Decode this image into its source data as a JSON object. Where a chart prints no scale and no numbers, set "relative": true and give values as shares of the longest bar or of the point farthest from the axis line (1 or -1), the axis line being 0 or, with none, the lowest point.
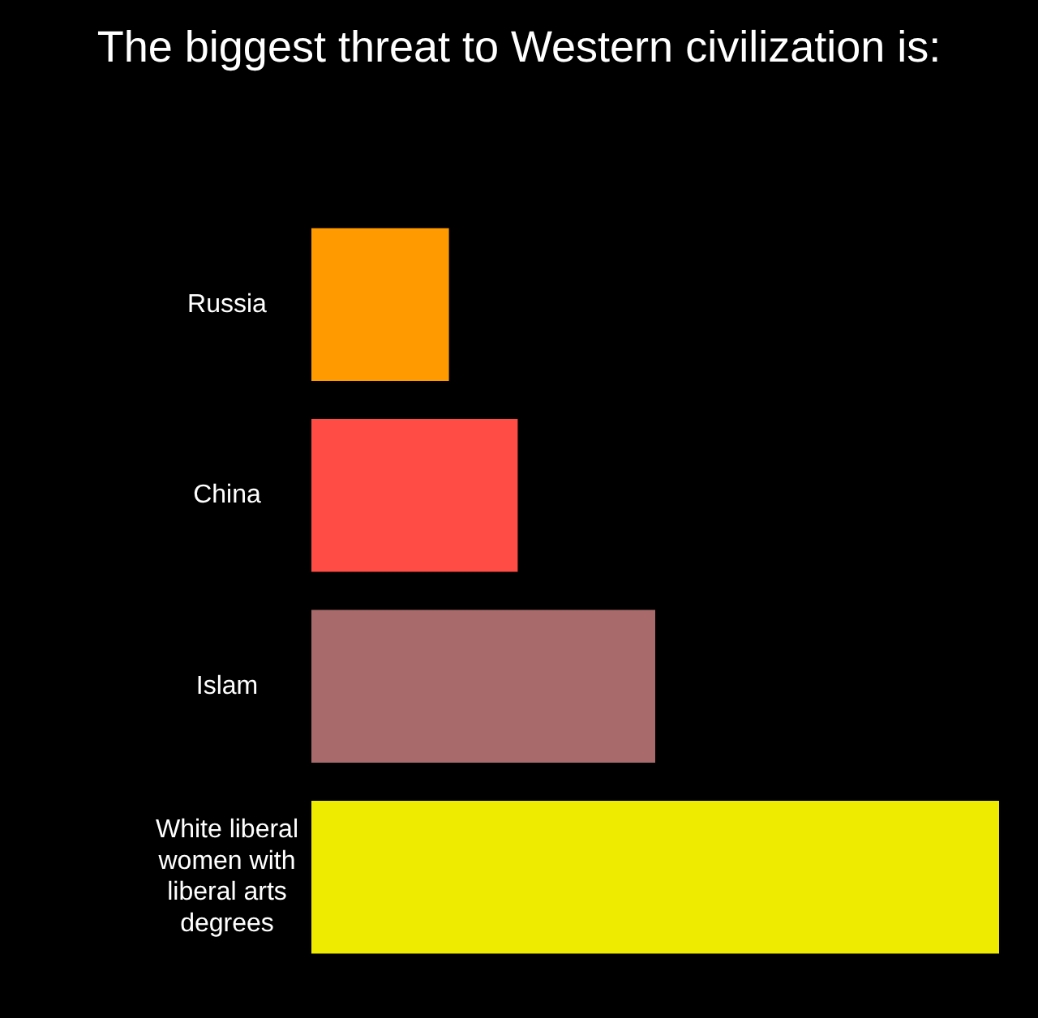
{
  "chart_data": {
    "type": "bar",
    "orientation": "horizontal",
    "relative": true,
    "title": "The biggest threat to Western civilization is:",
    "categories": [
      "Russia",
      "China",
      "Islam",
      "White liberal women with liberal arts degrees"
    ],
    "values": [
      0.2,
      0.3,
      0.5,
      1
    ],
    "colors": [
      "#ff9a00",
      "#ff4c44",
      "#a86a6a",
      "#eeea00"
    ]
  }
}
